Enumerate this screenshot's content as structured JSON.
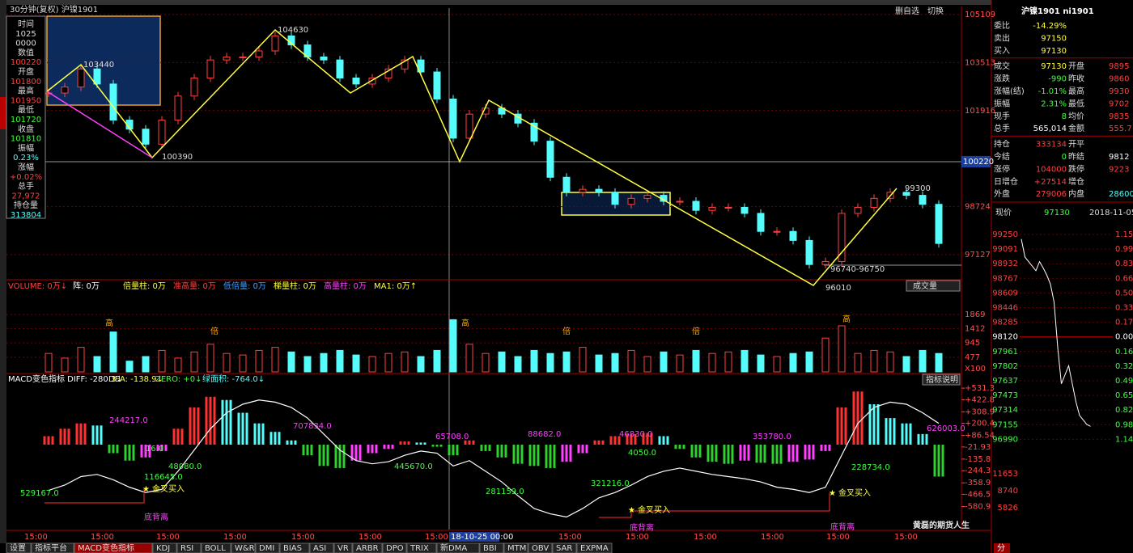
{
  "header": {
    "title": "30分钟(复权)  沪镍1901",
    "buttons": [
      "删自选",
      "切换"
    ]
  },
  "info_panel": {
    "lines": [
      "时间",
      "1025",
      "0000",
      "数值",
      "100220",
      "开盘",
      "101800",
      "最高",
      "101950",
      "最低",
      "101720",
      "收盘",
      "101810",
      "振幅",
      "0.23%",
      "涨幅",
      "+0.02%",
      "总手",
      "27,972",
      "持仓量",
      "313804"
    ]
  },
  "main_chart": {
    "closes": [
      102500,
      102700,
      103300,
      102800,
      101600,
      101300,
      100800,
      101600,
      102400,
      103000,
      103600,
      103700,
      103700,
      103900,
      104400,
      104100,
      103700,
      103600,
      103000,
      102800,
      103000,
      103300,
      103600,
      103200,
      102300,
      101000,
      101800,
      102000,
      101800,
      101500,
      100900,
      99700,
      99200,
      99300,
      99200,
      98800,
      99000,
      99100,
      98900,
      98900,
      98600,
      98700,
      98700,
      98500,
      97900,
      97900,
      97600,
      96800,
      96900,
      98500,
      98700,
      99000,
      99200,
      99100,
      98800,
      97500
    ],
    "ylim": [
      96321,
      105324
    ],
    "yticks": [
      105109,
      103513,
      101916,
      98724,
      97127
    ],
    "crosshair_value": 100220,
    "annotations": [
      "103440",
      "104630",
      "100390",
      "96010",
      "99300",
      "96740-96750"
    ]
  },
  "volume": {
    "header": [
      "VOLUME: 0万↓",
      "阵: 0万",
      "倍量柱: 0万",
      "准高量: 0万",
      "低倍量: 0万",
      "梯量柱: 0万",
      "高量柱: 0万",
      "MA1: 0万↑"
    ],
    "button": "成交量",
    "values": [
      600,
      450,
      800,
      500,
      1300,
      350,
      500,
      700,
      450,
      650,
      900,
      600,
      550,
      700,
      800,
      650,
      500,
      600,
      700,
      550,
      500,
      600,
      650,
      500,
      700,
      1700,
      900,
      600,
      650,
      500,
      700,
      600,
      650,
      800,
      550,
      600,
      700,
      500,
      650,
      550,
      700,
      600,
      650,
      700,
      550,
      500,
      600,
      650,
      1100,
      1500,
      600,
      700,
      650,
      500,
      700,
      600
    ],
    "ylim": [
      0,
      2237
    ],
    "yticks": [
      1869,
      1412,
      945,
      477
    ],
    "unit": "X100",
    "marks": [
      "高",
      "倍"
    ]
  },
  "macd": {
    "header": [
      "MACD变色指标 DIFF: -280.3↓",
      "DEA: -138.9↓",
      "ZERO: +0↓",
      "绿面积: -764.0↓"
    ],
    "button": "指标说明",
    "histogram": [
      80,
      150,
      200,
      180,
      -80,
      -150,
      -120,
      -60,
      150,
      350,
      450,
      420,
      300,
      200,
      120,
      40,
      -100,
      -200,
      -220,
      -150,
      -80,
      -40,
      30,
      20,
      -20,
      -100,
      40,
      -60,
      -120,
      -180,
      -200,
      -220,
      -160,
      -80,
      40,
      80,
      100,
      110,
      80,
      -40,
      -120,
      -160,
      -180,
      -150,
      -170,
      -180,
      -160,
      -140,
      -60,
      350,
      500,
      380,
      250,
      200,
      100,
      -300
    ],
    "diff": [
      -430,
      -380,
      -300,
      -280,
      -330,
      -400,
      -450,
      -420,
      -250,
      -50,
      150,
      300,
      380,
      420,
      400,
      350,
      250,
      100,
      -50,
      -150,
      -180,
      -160,
      -100,
      -60,
      -80,
      -200,
      -150,
      -250,
      -350,
      -480,
      -600,
      -650,
      -680,
      -600,
      -500,
      -450,
      -380,
      -300,
      -250,
      -220,
      -250,
      -280,
      -300,
      -320,
      -350,
      -400,
      -420,
      -450,
      -400,
      -100,
      200,
      350,
      400,
      380,
      300,
      200
    ],
    "ylim": [
      -836,
      608
    ],
    "yticks": [
      {
        "value": 531.3,
        "label": "+531.3"
      },
      {
        "value": 422.8,
        "label": "+422.8"
      },
      {
        "value": 308.9,
        "label": "+308.9"
      },
      {
        "value": 200.4,
        "label": "+200.4"
      },
      {
        "value": 86.54,
        "label": "+86.54"
      },
      -21.93,
      -135.8,
      -244.3,
      -358.9,
      -466.5,
      -580.9
    ],
    "annotations": [
      "244217.0",
      "707834.0",
      "65708.0",
      "88682.0",
      "46830.0",
      "353780.0",
      "626003.0",
      "16.0",
      "48080.0",
      "445670.0",
      "4050.0",
      "228734.0",
      "116645.0",
      "529167.0",
      "281159.0",
      "321216.0",
      "金叉买入",
      "金叉买入",
      "金叉买入",
      "底背离",
      "底背离",
      "底背离"
    ]
  },
  "time_axis": {
    "labels": [
      "15:00",
      "15:00",
      "15:00",
      "15:00",
      "15:00",
      "15:00",
      "15:00",
      "18-10-25 00:00",
      "15:00",
      "15:00",
      "15:00",
      "15:00",
      "15:00",
      "15:00"
    ]
  },
  "tabs": [
    "设置",
    "指标平台",
    "MACD变色指标",
    "KDJ",
    "RSI",
    "BOLL",
    "W&R",
    "DMI",
    "BIAS",
    "ASI",
    "VR",
    "ARBR",
    "DPO",
    "TRIX",
    "新DMA",
    "BBI",
    "MTM",
    "OBV",
    "SAR",
    "EXPMA"
  ],
  "quote": {
    "title": "沪镍1901 ni1901",
    "rows": [
      [
        "委比",
        "-14.29%"
      ],
      [
        "卖出",
        "97150"
      ],
      [
        "买入",
        "97130"
      ],
      [
        "成交",
        "97130",
        "开盘",
        "9895"
      ],
      [
        "涨跌",
        "-990",
        "昨收",
        "9860"
      ],
      [
        "涨幅(结)",
        "-1.01%",
        "最高",
        "9930"
      ],
      [
        "振幅",
        "2.31%",
        "最低",
        "9702"
      ],
      [
        "现手",
        "8",
        "均价",
        "9835"
      ],
      [
        "总手",
        "565,014",
        "金额",
        "555.7"
      ],
      [
        "持仓",
        "333134",
        "开平",
        ""
      ],
      [
        "今结",
        "0",
        "昨结",
        "9812"
      ],
      [
        "涨停",
        "104000",
        "跌停",
        "9223"
      ],
      [
        "日增仓",
        "+27514",
        "增仓",
        ""
      ],
      [
        "外盘",
        "279006",
        "内盘",
        "28600"
      ]
    ],
    "price_label": "现价",
    "price": "97130",
    "date": "2018-11-05,",
    "left_axis": [
      "99250",
      "99091",
      "98932",
      "98767",
      "98609",
      "98446",
      "98285",
      "98120",
      "97961",
      "97802",
      "97637",
      "97473",
      "97314",
      "97155",
      "96990",
      "11653",
      "8740",
      "5826"
    ],
    "right_axis": [
      "1.15%",
      "0.99%",
      "0.83%",
      "0.66%",
      "0.50%",
      "0.33%",
      "0.17%",
      "0.00%",
      "0.16%",
      "0.32%",
      "0.49%",
      "0.65%",
      "0.82%",
      "0.98%",
      "1.14%"
    ],
    "intraday": [
      99200,
      99000,
      98950,
      98900,
      98850,
      98950,
      98880,
      98800,
      98700,
      98500,
      98000,
      97600,
      97700,
      97800,
      97600,
      97400,
      97250,
      97200,
      97150,
      97130
    ],
    "intraday_ylim": [
      96990,
      99250
    ],
    "bottom_tab": "分"
  },
  "watermark": "黄磊的期货人生"
}
